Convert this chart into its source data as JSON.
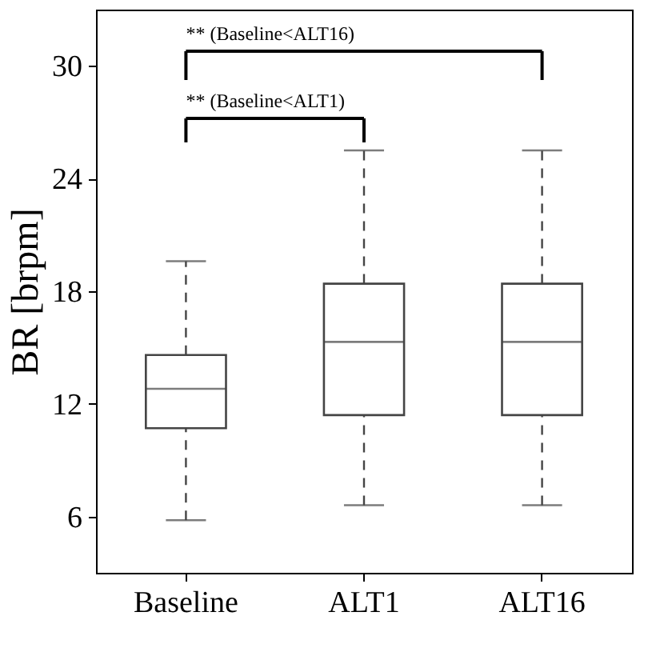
{
  "chart_data": {
    "type": "box",
    "ylabel": "BR [brpm]",
    "categories": [
      "Baseline",
      "ALT1",
      "ALT16"
    ],
    "boxes": [
      {
        "low": 5.8,
        "q1": 10.7,
        "median": 12.8,
        "q3": 14.6,
        "high": 19.6
      },
      {
        "low": 6.6,
        "q1": 11.4,
        "median": 15.3,
        "q3": 18.4,
        "high": 25.5
      },
      {
        "low": 6.6,
        "q1": 11.4,
        "median": 15.3,
        "q3": 18.4,
        "high": 25.5
      }
    ],
    "ylim": [
      3,
      33
    ],
    "yticks": [
      6,
      12,
      18,
      24,
      30
    ],
    "annotations": [
      "** (Baseline<ALT1)",
      "** (Baseline<ALT16)"
    ],
    "grid": false,
    "color": "#444444"
  }
}
